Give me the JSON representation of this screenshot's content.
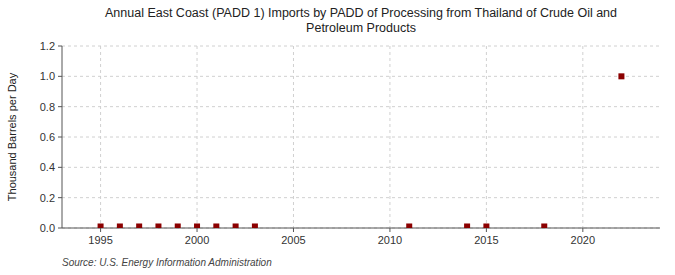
{
  "chart_data": {
    "type": "scatter",
    "title": "Annual East Coast (PADD 1) Imports by PADD of Processing from Thailand of Crude Oil and\nPetroleum Products",
    "ylabel": "Thousand Barrels per Day",
    "annotations": [
      "Source: U.S. Energy Information Administration"
    ],
    "x": [
      1995,
      1996,
      1997,
      1998,
      1999,
      2000,
      2001,
      2002,
      2003,
      2011,
      2014,
      2015,
      2018,
      2022
    ],
    "values": [
      0.01,
      0.01,
      0.01,
      0.01,
      0.01,
      0.01,
      0.01,
      0.01,
      0.01,
      0.01,
      0.01,
      0.01,
      0.01,
      1.0
    ],
    "color": "#8b0000",
    "marker": "square",
    "xlim": [
      1993,
      2024
    ],
    "ylim": [
      0.0,
      1.2
    ],
    "xticks": [
      1995,
      2000,
      2005,
      2010,
      2015,
      2020
    ],
    "yticks": [
      {
        "value": 0.0,
        "label": "0.0"
      },
      0.2,
      0.4,
      0.6,
      0.8,
      {
        "value": 1.0,
        "label": "1.0"
      },
      1.2
    ],
    "grid": true
  }
}
